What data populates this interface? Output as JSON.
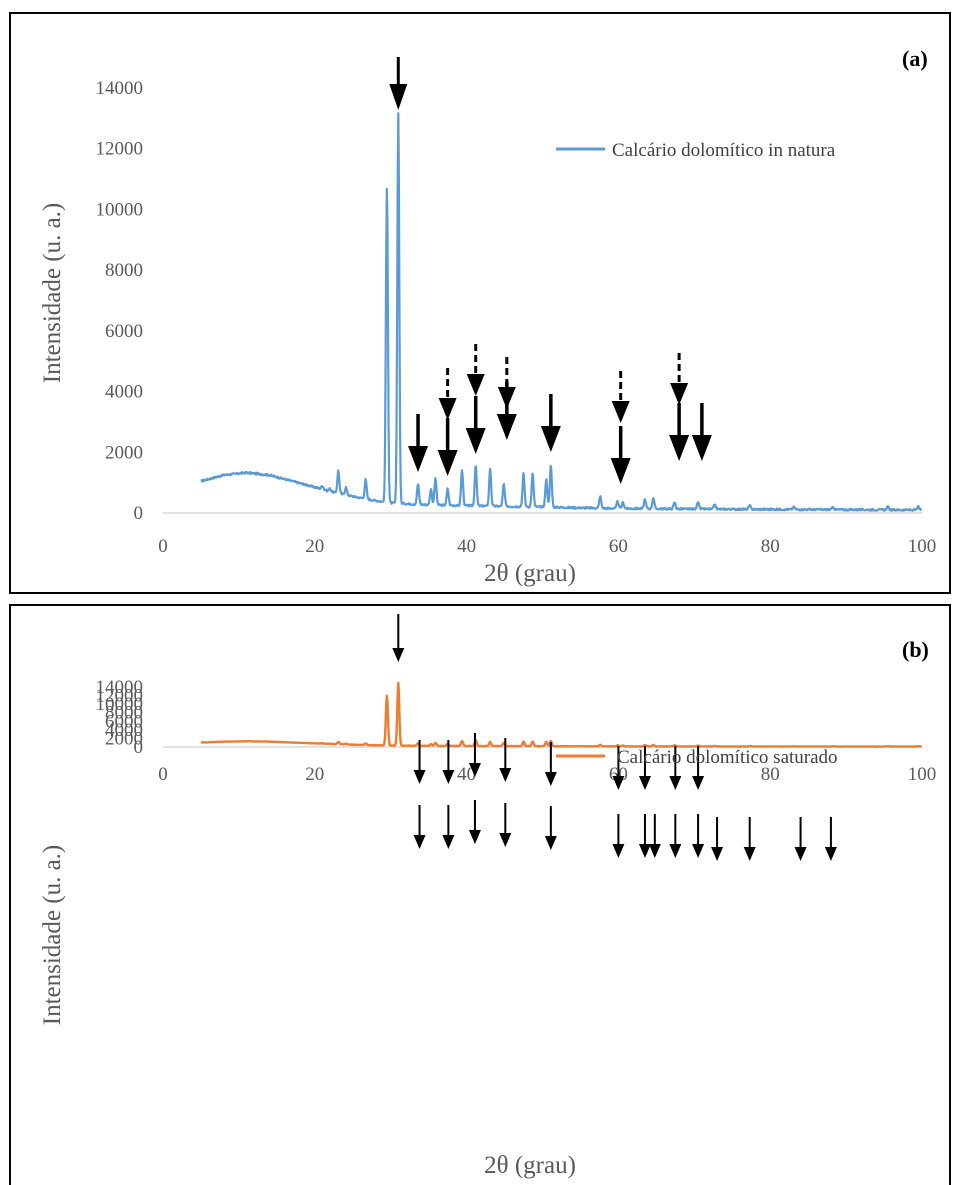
{
  "chart_data": [
    {
      "type": "line",
      "panel_label": "(a)",
      "xlabel": "2θ (grau)",
      "ylabel": "Intensidade (u. a.)",
      "xlim": [
        0,
        100
      ],
      "ylim": [
        0,
        15000
      ],
      "xticks": [
        0,
        20,
        40,
        60,
        80,
        100
      ],
      "yticks": [
        0,
        2000,
        4000,
        6000,
        8000,
        10000,
        12000,
        14000
      ],
      "grid": false,
      "legend": "right",
      "color": "#5b9bd5",
      "series": [
        {
          "name": "Calcário dolomítico in natura",
          "baseline": [
            [
              5,
              1050
            ],
            [
              8,
              1250
            ],
            [
              11,
              1330
            ],
            [
              14,
              1250
            ],
            [
              17,
              1050
            ],
            [
              20,
              850
            ],
            [
              23,
              650
            ],
            [
              27,
              450
            ],
            [
              30,
              330
            ],
            [
              35,
              270
            ],
            [
              40,
              240
            ],
            [
              45,
              220
            ],
            [
              50,
              200
            ],
            [
              55,
              170
            ],
            [
              60,
              150
            ],
            [
              70,
              130
            ],
            [
              80,
              120
            ],
            [
              90,
              110
            ],
            [
              100,
              100
            ]
          ],
          "peaks": [
            [
              21.0,
              900
            ],
            [
              22.0,
              800
            ],
            [
              23.1,
              1400
            ],
            [
              24.1,
              850
            ],
            [
              26.7,
              1100
            ],
            [
              29.5,
              10800
            ],
            [
              31.0,
              13200
            ],
            [
              33.6,
              950
            ],
            [
              35.3,
              800
            ],
            [
              35.9,
              1150
            ],
            [
              37.5,
              800
            ],
            [
              39.4,
              1400
            ],
            [
              41.2,
              1600
            ],
            [
              43.1,
              1450
            ],
            [
              44.9,
              950
            ],
            [
              47.5,
              1300
            ],
            [
              48.7,
              1300
            ],
            [
              50.5,
              1100
            ],
            [
              51.1,
              1550
            ],
            [
              57.6,
              550
            ],
            [
              59.9,
              380
            ],
            [
              60.6,
              350
            ],
            [
              63.5,
              450
            ],
            [
              64.6,
              500
            ],
            [
              67.4,
              350
            ],
            [
              70.5,
              380
            ],
            [
              72.7,
              280
            ],
            [
              77.3,
              240
            ],
            [
              83.1,
              190
            ],
            [
              88.3,
              190
            ],
            [
              95.5,
              200
            ],
            [
              99.5,
              200
            ]
          ],
          "arrows_solid": [
            [
              31.0,
              13200
            ],
            [
              33.6,
              950
            ],
            [
              37.5,
              800
            ],
            [
              41.2,
              1600
            ],
            [
              45.3,
              950
            ],
            [
              51.1,
              1550
            ],
            [
              60.3,
              400
            ],
            [
              68.0,
              350
            ],
            [
              71.0,
              380
            ]
          ],
          "arrows_dashed": [
            [
              37.5,
              800
            ],
            [
              41.2,
              1600
            ],
            [
              45.3,
              950
            ],
            [
              60.3,
              400
            ],
            [
              68.0,
              350
            ]
          ]
        }
      ]
    },
    {
      "type": "line",
      "panel_label": "(b)",
      "xlabel": "2θ (grau)",
      "ylabel": "Intensidade (u. a.)",
      "xlim": [
        0,
        100
      ],
      "ylim": [
        0,
        15000
      ],
      "xticks": [
        0,
        20,
        40,
        60,
        80,
        100
      ],
      "yticks": [
        0,
        2000,
        4000,
        6000,
        8000,
        10000,
        12000,
        14000
      ],
      "grid": false,
      "legend": "right",
      "color": "#ed7d31",
      "series": [
        {
          "name": "Calcário dolomítico saturado",
          "baseline": [
            [
              5,
              1050
            ],
            [
              8,
              1250
            ],
            [
              11,
              1330
            ],
            [
              14,
              1250
            ],
            [
              17,
              1050
            ],
            [
              20,
              850
            ],
            [
              23,
              650
            ],
            [
              27,
              450
            ],
            [
              30,
              330
            ],
            [
              35,
              270
            ],
            [
              40,
              240
            ],
            [
              45,
              220
            ],
            [
              50,
              200
            ],
            [
              55,
              170
            ],
            [
              60,
              150
            ],
            [
              70,
              130
            ],
            [
              80,
              120
            ],
            [
              90,
              110
            ],
            [
              100,
              100
            ]
          ],
          "peaks": [
            [
              21.0,
              900
            ],
            [
              22.0,
              800
            ],
            [
              23.1,
              1200
            ],
            [
              24.1,
              800
            ],
            [
              26.7,
              850
            ],
            [
              29.5,
              12100
            ],
            [
              31.0,
              15000
            ],
            [
              33.6,
              850
            ],
            [
              35.3,
              700
            ],
            [
              35.9,
              1000
            ],
            [
              37.5,
              750
            ],
            [
              39.4,
              1400
            ],
            [
              41.2,
              1650
            ],
            [
              43.1,
              1200
            ],
            [
              44.9,
              950
            ],
            [
              47.5,
              1250
            ],
            [
              48.7,
              1300
            ],
            [
              50.5,
              1200
            ],
            [
              51.1,
              1400
            ],
            [
              57.6,
              500
            ],
            [
              59.9,
              420
            ],
            [
              60.6,
              350
            ],
            [
              63.5,
              480
            ],
            [
              64.6,
              500
            ],
            [
              67.4,
              400
            ],
            [
              70.5,
              340
            ],
            [
              72.7,
              260
            ],
            [
              77.3,
              220
            ],
            [
              83.1,
              190
            ],
            [
              88.3,
              190
            ],
            [
              95.5,
              200
            ],
            [
              99.5,
              200
            ]
          ],
          "arrows_upper": [
            [
              33.8,
              1
            ],
            [
              37.6,
              1
            ],
            [
              41.1,
              1
            ],
            [
              45.1,
              1
            ],
            [
              51.1,
              1
            ],
            [
              60.0,
              1
            ],
            [
              63.5,
              1
            ],
            [
              67.5,
              1
            ],
            [
              70.5,
              1
            ]
          ],
          "arrows_lower": [
            [
              33.8,
              850
            ],
            [
              37.6,
              750
            ],
            [
              41.1,
              1650
            ],
            [
              45.1,
              950
            ],
            [
              51.1,
              1400
            ],
            [
              60.0,
              420
            ],
            [
              63.5,
              480
            ],
            [
              64.8,
              500
            ],
            [
              67.5,
              400
            ],
            [
              70.5,
              340
            ],
            [
              73.0,
              260
            ],
            [
              77.3,
              220
            ],
            [
              84.0,
              190
            ],
            [
              88.0,
              190
            ]
          ],
          "arrow_top": [
            [
              31.0,
              15000
            ]
          ]
        }
      ]
    }
  ]
}
